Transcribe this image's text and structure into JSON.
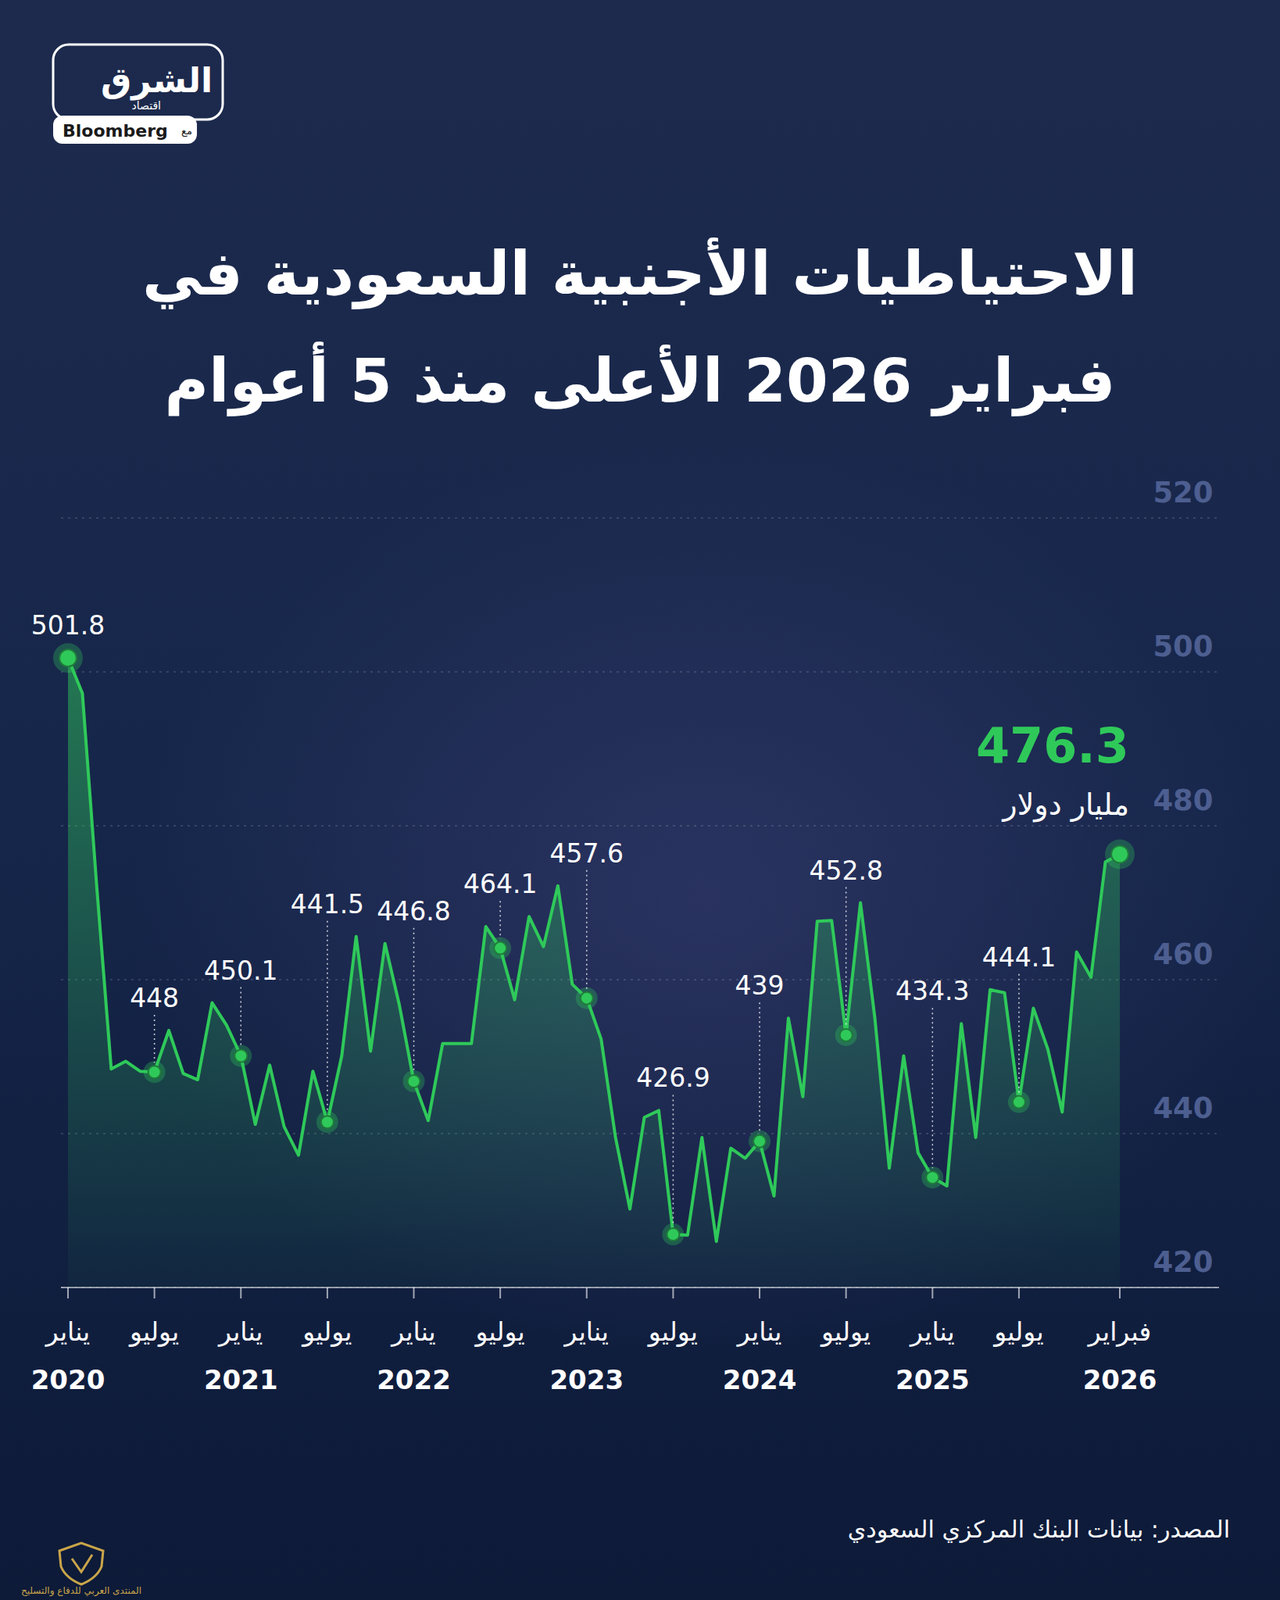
{
  "logo": {
    "name": "الشرق",
    "sub": "اقتصاد",
    "with": "مع",
    "partner": "Bloomberg"
  },
  "chart_data": {
    "type": "line",
    "title": "الاحتياطيات الأجنبية السعودية في فبراير 2026 الأعلى منذ 5 أعوام",
    "y_label": "مليار دولار",
    "categories": [
      "يناير 2020",
      null,
      null,
      null,
      null,
      null,
      "يوليو",
      null,
      null,
      null,
      null,
      null,
      "يناير 2021",
      null,
      null,
      null,
      null,
      null,
      "يوليو",
      null,
      null,
      null,
      null,
      null,
      "يناير 2022",
      null,
      null,
      null,
      null,
      null,
      "يوليو",
      null,
      null,
      null,
      null,
      null,
      "يناير 2023",
      null,
      null,
      null,
      null,
      null,
      "يوليو",
      null,
      null,
      null,
      null,
      null,
      "يناير 2024",
      null,
      null,
      null,
      null,
      null,
      "يوليو",
      null,
      null,
      null,
      null,
      null,
      "يناير 2025",
      null,
      null,
      null,
      null,
      null,
      "يوليو",
      null,
      null,
      null,
      null,
      null,
      null,
      "فبراير 2026"
    ],
    "values": [
      501.8,
      497.2,
      472.0,
      448.4,
      449.4,
      448.1,
      448,
      453.4,
      447.8,
      447.0,
      457.0,
      454.1,
      450.1,
      441.2,
      448.9,
      440.9,
      437.2,
      448.1,
      441.5,
      450.1,
      465.6,
      450.7,
      464.7,
      456.7,
      446.8,
      441.7,
      451.7,
      451.7,
      451.7,
      466.9,
      464.1,
      457.4,
      468.2,
      464.3,
      472.2,
      459.4,
      457.6,
      452.3,
      439.5,
      430.2,
      442.1,
      443.0,
      426.9,
      426.8,
      439.5,
      426.0,
      438.1,
      436.8,
      439.0,
      431.9,
      455.0,
      444.8,
      467.6,
      467.7,
      452.8,
      470.0,
      455.0,
      435.5,
      450.1,
      437.5,
      434.3,
      433.2,
      454.3,
      439.5,
      458.7,
      458.3,
      444.1,
      456.3,
      451.0,
      442.8,
      463.6,
      460.3,
      475.3,
      476.3
    ],
    "value_labels": [
      "501.8",
      null,
      null,
      null,
      null,
      null,
      "448",
      null,
      null,
      null,
      null,
      null,
      "450.1",
      null,
      null,
      null,
      null,
      null,
      "441.5",
      null,
      null,
      null,
      null,
      null,
      "446.8",
      null,
      null,
      null,
      null,
      null,
      "464.1",
      null,
      null,
      null,
      null,
      null,
      "457.6",
      null,
      null,
      null,
      null,
      null,
      "426.9",
      null,
      null,
      null,
      null,
      null,
      "439",
      null,
      null,
      null,
      null,
      null,
      "452.8",
      null,
      null,
      null,
      null,
      null,
      "434.3",
      null,
      null,
      null,
      null,
      null,
      "444.1",
      null,
      null,
      null,
      null,
      null,
      null,
      "476.3"
    ],
    "color": "#2fc95a",
    "ylim": [
      420,
      520
    ],
    "yticks": [
      420,
      440,
      460,
      480,
      500,
      520
    ],
    "grid": true,
    "data_labels": true,
    "marker": "circle"
  },
  "source": "المصدر: بيانات البنك المركزي السعودي",
  "watermark": "المنتدى العربي للدفاع والتسليح"
}
